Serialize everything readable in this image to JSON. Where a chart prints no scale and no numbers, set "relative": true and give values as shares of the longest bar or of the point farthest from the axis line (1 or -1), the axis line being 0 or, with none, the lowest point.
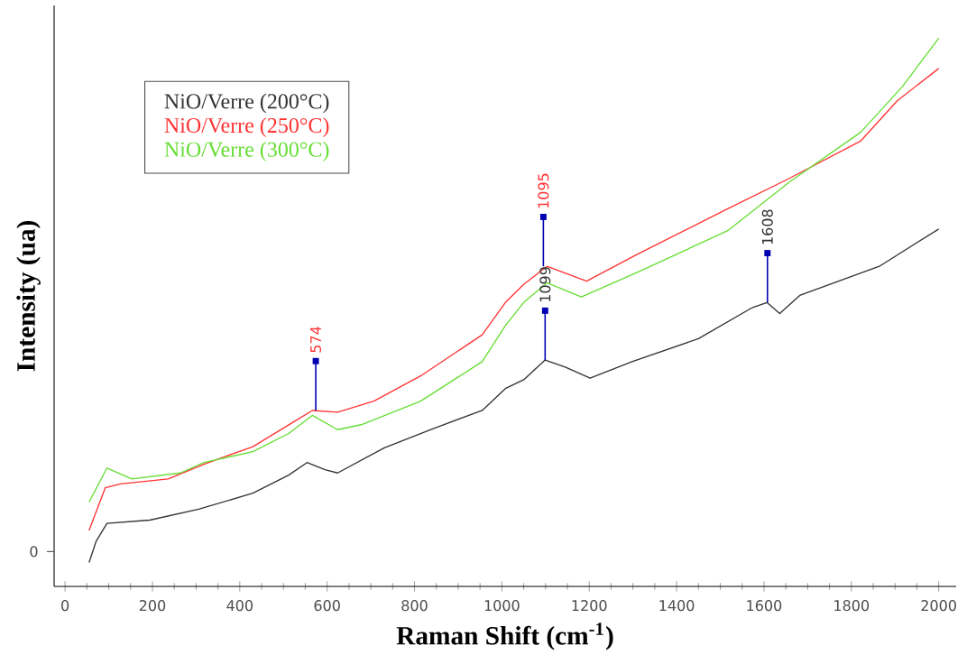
{
  "chart_data": {
    "type": "line",
    "xlabel": "Raman Shift (cm$^{-1}$)",
    "ylabel": "Intensity (ua)",
    "relative": true,
    "xlim": [
      -25,
      2040
    ],
    "xticks": [
      0,
      200,
      400,
      600,
      800,
      1000,
      1200,
      1400,
      1600,
      1800,
      2000
    ],
    "legend": "top left",
    "marker": "none",
    "line_style": "solid",
    "series": [
      {
        "name": "NiO/Verre (200°C)",
        "color": "#333333",
        "x": [
          55,
          71,
          96,
          194,
          306,
          430,
          512,
          554,
          595,
          624,
          731,
          843,
          955,
          1008,
          1050,
          1099,
          1145,
          1202,
          1298,
          1450,
          1574,
          1607,
          1636,
          1682,
          1864,
          2000
        ],
        "values": [
          0.0435,
          0.082,
          0.115,
          0.121,
          0.141,
          0.17,
          0.203,
          0.226,
          0.213,
          0.207,
          0.253,
          0.288,
          0.321,
          0.361,
          0.377,
          0.413,
          0.4,
          0.38,
          0.41,
          0.452,
          0.509,
          0.518,
          0.498,
          0.531,
          0.584,
          0.652
        ]
      },
      {
        "name": "NiO/Verre (250°C)",
        "color": "#ff3333",
        "x": [
          55,
          92,
          127,
          236,
          318,
          430,
          525,
          566,
          624,
          707,
          814,
          955,
          1008,
          1050,
          1103,
          1194,
          1310,
          1517,
          1657,
          1822,
          1905,
          2000
        ],
        "values": [
          0.102,
          0.18,
          0.187,
          0.196,
          0.223,
          0.255,
          0.301,
          0.321,
          0.318,
          0.338,
          0.384,
          0.459,
          0.518,
          0.551,
          0.584,
          0.557,
          0.606,
          0.689,
          0.744,
          0.813,
          0.886,
          0.945
        ]
      },
      {
        "name": "NiO/Verre (300°C)",
        "color": "#66dd33",
        "x": [
          55,
          96,
          153,
          264,
          318,
          430,
          512,
          566,
          624,
          678,
          814,
          955,
          1008,
          1050,
          1103,
          1182,
          1310,
          1517,
          1657,
          1822,
          1917,
          2000
        ],
        "values": [
          0.154,
          0.216,
          0.196,
          0.207,
          0.226,
          0.246,
          0.279,
          0.312,
          0.286,
          0.295,
          0.338,
          0.41,
          0.476,
          0.518,
          0.554,
          0.528,
          0.573,
          0.649,
          0.737,
          0.829,
          0.912,
          1.0
        ]
      }
    ],
    "annotations": [
      "0",
      {
        "text": "574",
        "x": 574,
        "y": 0.321
      },
      {
        "text": "1095",
        "x": 1095,
        "y": 0.584
      },
      {
        "text": "1099",
        "x": 1099,
        "y": 0.413
      },
      {
        "text": "1608",
        "x": 1608,
        "y": 0.518
      }
    ]
  }
}
